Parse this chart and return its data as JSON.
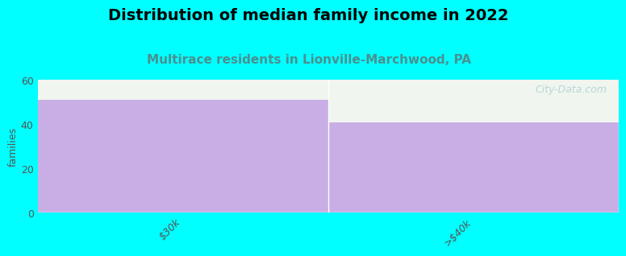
{
  "title": "Distribution of median family income in 2022",
  "subtitle": "Multirace residents in Lionville-Marchwood, PA",
  "categories": [
    "$30k",
    ">$40k"
  ],
  "values": [
    51,
    41
  ],
  "bar_color": "#c9aee5",
  "background_color": "#00FFFF",
  "plot_bg_color": "#f0f5f0",
  "title_fontsize": 14,
  "subtitle_fontsize": 11,
  "subtitle_color": "#4a9090",
  "ylabel": "families",
  "ylim": [
    0,
    60
  ],
  "yticks": [
    0,
    20,
    40,
    60
  ],
  "watermark": "City-Data.com",
  "bar_width": 1.0
}
